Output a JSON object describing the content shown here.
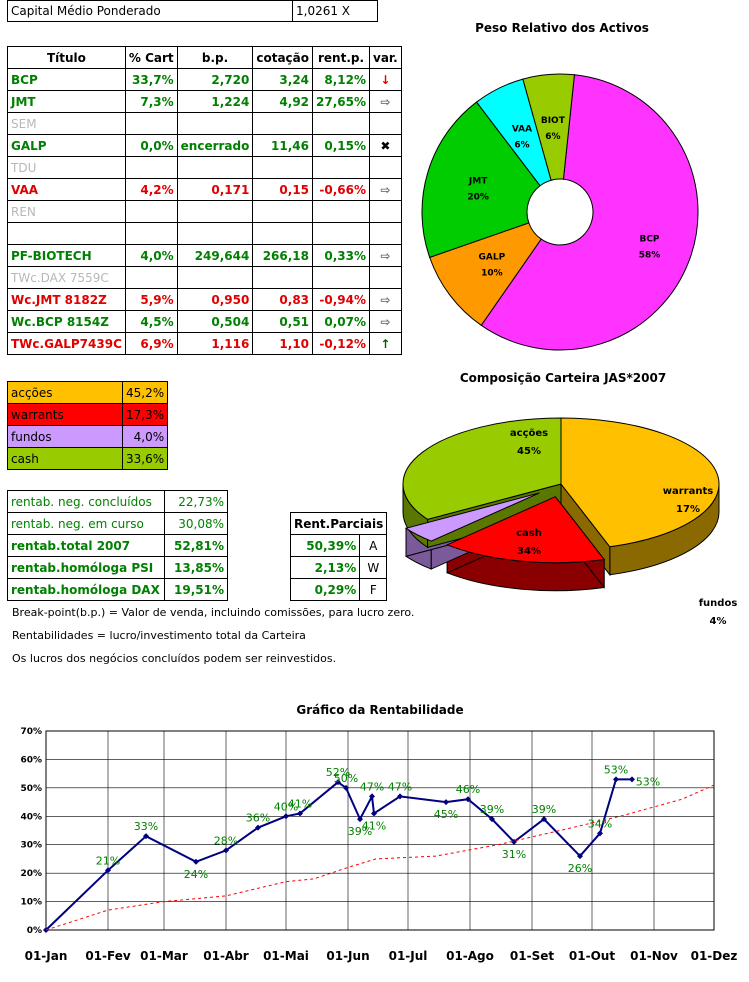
{
  "header": {
    "label": "Capital Médio Ponderado",
    "value": "1,0261 X"
  },
  "positions": {
    "headers": [
      "Título",
      "% Cart",
      "b.p.",
      "cotação",
      "rent.p.",
      "var."
    ],
    "rows": [
      {
        "name": "BCP",
        "pct": "33,7%",
        "bp": "2,720",
        "quote": "3,24",
        "rent": "8,12%",
        "var": "↓",
        "cls": "green",
        "varcolor": "#e00000"
      },
      {
        "name": "JMT",
        "pct": "7,3%",
        "bp": "1,224",
        "quote": "4,92",
        "rent": "27,65%",
        "var": "⇨",
        "cls": "green",
        "varcolor": "#606060"
      },
      {
        "name": "SEM",
        "pct": "",
        "bp": "",
        "quote": "",
        "rent": "",
        "var": "",
        "cls": "grey",
        "varcolor": "#000"
      },
      {
        "name": "GALP",
        "pct": "0,0%",
        "bp": "encerrado",
        "quote": "11,46",
        "rent": "0,15%",
        "var": "✖",
        "cls": "green",
        "varcolor": "#000"
      },
      {
        "name": "TDU",
        "pct": "",
        "bp": "",
        "quote": "",
        "rent": "",
        "var": "",
        "cls": "grey",
        "varcolor": "#000"
      },
      {
        "name": "VAA",
        "pct": "4,2%",
        "bp": "0,171",
        "quote": "0,15",
        "rent": "-0,66%",
        "var": "⇨",
        "cls": "red",
        "varcolor": "#606060"
      },
      {
        "name": "REN",
        "pct": "",
        "bp": "",
        "quote": "",
        "rent": "",
        "var": "",
        "cls": "grey",
        "varcolor": "#000"
      },
      {
        "name": "",
        "pct": "",
        "bp": "",
        "quote": "",
        "rent": "",
        "var": "",
        "cls": "grey",
        "varcolor": "#000"
      },
      {
        "name": "PF-BIOTECH",
        "pct": "4,0%",
        "bp": "249,644",
        "quote": "266,18",
        "rent": "0,33%",
        "var": "⇨",
        "cls": "green",
        "varcolor": "#606060"
      },
      {
        "name": "TWc.DAX 7559C",
        "pct": "",
        "bp": "",
        "quote": "",
        "rent": "",
        "var": "",
        "cls": "grey",
        "varcolor": "#000"
      },
      {
        "name": "Wc.JMT 8182Z",
        "pct": "5,9%",
        "bp": "0,950",
        "quote": "0,83",
        "rent": "-0,94%",
        "var": "⇨",
        "cls": "red",
        "varcolor": "#606060"
      },
      {
        "name": "Wc.BCP 8154Z",
        "pct": "4,5%",
        "bp": "0,504",
        "quote": "0,51",
        "rent": "0,07%",
        "var": "⇨",
        "cls": "green",
        "varcolor": "#606060"
      },
      {
        "name": "TWc.GALP7439C",
        "pct": "6,9%",
        "bp": "1,116",
        "quote": "1,10",
        "rent": "-0,12%",
        "var": "↑",
        "cls": "red",
        "varcolor": "#006000"
      }
    ]
  },
  "allocation": [
    {
      "label": "acções",
      "value": "45,2%",
      "bg": "#ffc000",
      "color": "#000000"
    },
    {
      "label": "warrants",
      "value": "17,3%",
      "bg": "#ff0000",
      "color": "#000000"
    },
    {
      "label": "fundos",
      "value": "4,0%",
      "bg": "#cc99ff",
      "color": "#000000"
    },
    {
      "label": "cash",
      "value": "33,6%",
      "bg": "#99cc00",
      "color": "#000000"
    }
  ],
  "returns": [
    {
      "label": "rentab. neg. concluídos",
      "value": "22,73%",
      "bold": false
    },
    {
      "label": "rentab. neg. em curso",
      "value": "30,08%",
      "bold": false
    },
    {
      "label": "rentab.total 2007",
      "value": "52,81%",
      "bold": true
    },
    {
      "label": "rentab.homóloga PSI",
      "value": "13,85%",
      "bold": true
    },
    {
      "label": "rentab.homóloga DAX",
      "value": "19,51%",
      "bold": true
    }
  ],
  "partials": {
    "header": "Rent.Parciais",
    "rows": [
      {
        "value": "50,39%",
        "tag": "A"
      },
      {
        "value": "2,13%",
        "tag": "W"
      },
      {
        "value": "0,29%",
        "tag": "F"
      }
    ]
  },
  "notes": [
    "Break-point(b.p.) = Valor de venda, incluindo comissões, para lucro zero.",
    "Rentabilidades = lucro/investimento total da Carteira",
    "Os lucros dos negócios concluídos podem ser reinvestidos."
  ],
  "chart_data": [
    {
      "type": "pie",
      "title": "Peso Relativo dos Activos",
      "labels": [
        "BCP",
        "GALP",
        "JMT",
        "VAA",
        "BIOT"
      ],
      "values": [
        58,
        10,
        20,
        6,
        6
      ],
      "value_labels": [
        "58%",
        "10%",
        "20%",
        "6%",
        "6%"
      ],
      "colors": [
        "#ff33ff",
        "#ff9900",
        "#00cc00",
        "#00ffff",
        "#99cc00"
      ]
    },
    {
      "type": "pie",
      "title": "Composição Carteira JAS*2007",
      "labels": [
        "acções",
        "warrants",
        "fundos",
        "cash"
      ],
      "values": [
        45,
        17,
        4,
        34
      ],
      "value_labels": [
        "45%",
        "17%",
        "4%",
        "34%"
      ],
      "colors": [
        "#ffc000",
        "#ff0000",
        "#cc99ff",
        "#99cc00"
      ]
    },
    {
      "type": "line",
      "title": "Gráfico da Rentabilidade",
      "x_ticks": [
        "01-Jan",
        "01-Fev",
        "01-Mar",
        "01-Abr",
        "01-Mai",
        "01-Jun",
        "01-Jul",
        "01-Ago",
        "01-Set",
        "01-Out",
        "01-Nov",
        "01-Dez"
      ],
      "y_ticks": [
        "0%",
        "10%",
        "20%",
        "30%",
        "40%",
        "50%",
        "60%",
        "70%"
      ],
      "ylim": [
        0,
        70
      ],
      "grid": true,
      "series": [
        {
          "color": "#000080",
          "style": "solid",
          "points": [
            {
              "x": "2007-01-01",
              "y": 0,
              "label": ""
            },
            {
              "x": "2007-02-01",
              "y": 21,
              "label": "21%"
            },
            {
              "x": "2007-02-20",
              "y": 33,
              "label": "33%"
            },
            {
              "x": "2007-03-17",
              "y": 24,
              "label": "24%"
            },
            {
              "x": "2007-04-01",
              "y": 28,
              "label": "28%"
            },
            {
              "x": "2007-04-17",
              "y": 36,
              "label": "36%"
            },
            {
              "x": "2007-05-01",
              "y": 40,
              "label": "40%"
            },
            {
              "x": "2007-05-08",
              "y": 41,
              "label": "41%"
            },
            {
              "x": "2007-05-27",
              "y": 52,
              "label": "52%"
            },
            {
              "x": "2007-05-31",
              "y": 50,
              "label": "50%"
            },
            {
              "x": "2007-06-07",
              "y": 39,
              "label": "39%"
            },
            {
              "x": "2007-06-13",
              "y": 47,
              "label": "47%"
            },
            {
              "x": "2007-06-14",
              "y": 41,
              "label": "41%"
            },
            {
              "x": "2007-06-27",
              "y": 47,
              "label": "47%"
            },
            {
              "x": "2007-07-20",
              "y": 45,
              "label": "45%"
            },
            {
              "x": "2007-07-31",
              "y": 46,
              "label": "46%"
            },
            {
              "x": "2007-08-12",
              "y": 39,
              "label": "39%"
            },
            {
              "x": "2007-08-23",
              "y": 31,
              "label": "31%"
            },
            {
              "x": "2007-09-07",
              "y": 39,
              "label": "39%"
            },
            {
              "x": "2007-09-25",
              "y": 26,
              "label": "26%"
            },
            {
              "x": "2007-10-05",
              "y": 34,
              "label": "34%"
            },
            {
              "x": "2007-10-13",
              "y": 53,
              "label": "53%"
            },
            {
              "x": "2007-10-21",
              "y": 53,
              "label": "53%"
            }
          ]
        },
        {
          "color": "#ff0000",
          "style": "dashed",
          "points": [
            {
              "x": "2007-01-01",
              "y": 0
            },
            {
              "x": "2007-02-01",
              "y": 7
            },
            {
              "x": "2007-03-01",
              "y": 10
            },
            {
              "x": "2007-04-01",
              "y": 12
            },
            {
              "x": "2007-05-01",
              "y": 17
            },
            {
              "x": "2007-05-15",
              "y": 18
            },
            {
              "x": "2007-06-01",
              "y": 22
            },
            {
              "x": "2007-06-15",
              "y": 25
            },
            {
              "x": "2007-07-15",
              "y": 26
            },
            {
              "x": "2007-08-15",
              "y": 30
            },
            {
              "x": "2007-09-15",
              "y": 35
            },
            {
              "x": "2007-10-15",
              "y": 40
            },
            {
              "x": "2007-11-15",
              "y": 46
            },
            {
              "x": "2007-12-01",
              "y": 51
            }
          ]
        }
      ]
    }
  ]
}
